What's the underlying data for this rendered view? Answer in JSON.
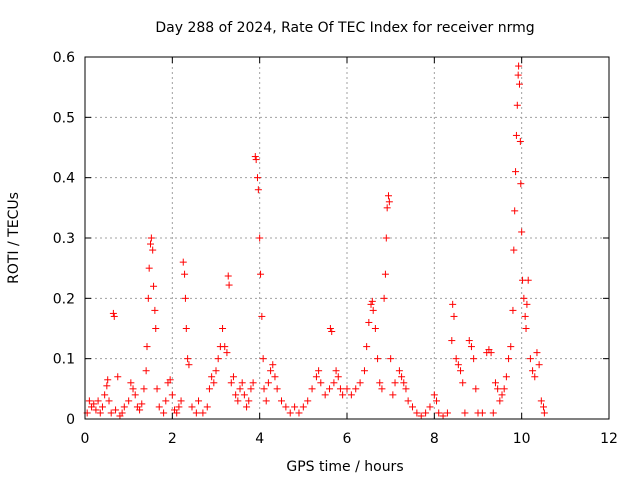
{
  "chart_data": {
    "type": "scatter",
    "title": "Day 288 of 2024, Rate Of TEC Index for receiver nrmg",
    "xlabel": "GPS time / hours",
    "ylabel": "ROTI / TECUs",
    "xlim": [
      0,
      12
    ],
    "ylim": [
      0,
      0.6
    ],
    "xticks": [
      "0",
      "2",
      "4",
      "6",
      "8",
      "10",
      "12"
    ],
    "yticks": [
      "0",
      "0.1",
      "0.2",
      "0.3",
      "0.4",
      "0.5",
      "0.6"
    ],
    "grid": true,
    "marker": "plus",
    "color": "#ff0000",
    "series": [
      {
        "name": "ROTI",
        "points": [
          [
            0.05,
            0.01
          ],
          [
            0.1,
            0.03
          ],
          [
            0.15,
            0.02
          ],
          [
            0.2,
            0.025
          ],
          [
            0.25,
            0.015
          ],
          [
            0.3,
            0.03
          ],
          [
            0.35,
            0.01
          ],
          [
            0.4,
            0.02
          ],
          [
            0.45,
            0.04
          ],
          [
            0.5,
            0.055
          ],
          [
            0.52,
            0.065
          ],
          [
            0.55,
            0.03
          ],
          [
            0.6,
            0.01
          ],
          [
            0.65,
            0.175
          ],
          [
            0.67,
            0.17
          ],
          [
            0.7,
            0.015
          ],
          [
            0.75,
            0.07
          ],
          [
            0.8,
            0.005
          ],
          [
            0.85,
            0.01
          ],
          [
            0.9,
            0.02
          ],
          [
            1.0,
            0.03
          ],
          [
            1.05,
            0.06
          ],
          [
            1.1,
            0.05
          ],
          [
            1.15,
            0.04
          ],
          [
            1.2,
            0.02
          ],
          [
            1.25,
            0.015
          ],
          [
            1.3,
            0.025
          ],
          [
            1.35,
            0.05
          ],
          [
            1.4,
            0.08
          ],
          [
            1.42,
            0.12
          ],
          [
            1.45,
            0.2
          ],
          [
            1.47,
            0.25
          ],
          [
            1.5,
            0.29
          ],
          [
            1.52,
            0.3
          ],
          [
            1.55,
            0.28
          ],
          [
            1.57,
            0.22
          ],
          [
            1.6,
            0.18
          ],
          [
            1.62,
            0.15
          ],
          [
            1.65,
            0.05
          ],
          [
            1.7,
            0.02
          ],
          [
            1.8,
            0.01
          ],
          [
            1.85,
            0.03
          ],
          [
            1.9,
            0.06
          ],
          [
            1.95,
            0.065
          ],
          [
            2.0,
            0.04
          ],
          [
            2.05,
            0.015
          ],
          [
            2.1,
            0.01
          ],
          [
            2.15,
            0.02
          ],
          [
            2.2,
            0.03
          ],
          [
            2.25,
            0.26
          ],
          [
            2.28,
            0.24
          ],
          [
            2.3,
            0.2
          ],
          [
            2.32,
            0.15
          ],
          [
            2.35,
            0.1
          ],
          [
            2.38,
            0.09
          ],
          [
            2.45,
            0.02
          ],
          [
            2.55,
            0.01
          ],
          [
            2.6,
            0.03
          ],
          [
            2.7,
            0.01
          ],
          [
            2.8,
            0.02
          ],
          [
            2.85,
            0.05
          ],
          [
            2.9,
            0.07
          ],
          [
            2.95,
            0.06
          ],
          [
            3.0,
            0.08
          ],
          [
            3.05,
            0.1
          ],
          [
            3.1,
            0.12
          ],
          [
            3.15,
            0.15
          ],
          [
            3.2,
            0.12
          ],
          [
            3.25,
            0.11
          ],
          [
            3.28,
            0.237
          ],
          [
            3.3,
            0.222
          ],
          [
            3.35,
            0.06
          ],
          [
            3.4,
            0.07
          ],
          [
            3.45,
            0.04
          ],
          [
            3.5,
            0.03
          ],
          [
            3.55,
            0.05
          ],
          [
            3.6,
            0.06
          ],
          [
            3.65,
            0.04
          ],
          [
            3.7,
            0.02
          ],
          [
            3.75,
            0.03
          ],
          [
            3.8,
            0.05
          ],
          [
            3.85,
            0.06
          ],
          [
            3.9,
            0.435
          ],
          [
            3.92,
            0.43
          ],
          [
            3.95,
            0.4
          ],
          [
            3.97,
            0.38
          ],
          [
            4.0,
            0.3
          ],
          [
            4.02,
            0.24
          ],
          [
            4.05,
            0.17
          ],
          [
            4.08,
            0.1
          ],
          [
            4.1,
            0.05
          ],
          [
            4.15,
            0.03
          ],
          [
            4.2,
            0.06
          ],
          [
            4.25,
            0.08
          ],
          [
            4.3,
            0.09
          ],
          [
            4.35,
            0.07
          ],
          [
            4.4,
            0.05
          ],
          [
            4.5,
            0.03
          ],
          [
            4.6,
            0.02
          ],
          [
            4.7,
            0.01
          ],
          [
            4.8,
            0.02
          ],
          [
            4.9,
            0.01
          ],
          [
            5.0,
            0.02
          ],
          [
            5.1,
            0.03
          ],
          [
            5.2,
            0.05
          ],
          [
            5.3,
            0.07
          ],
          [
            5.35,
            0.08
          ],
          [
            5.4,
            0.06
          ],
          [
            5.5,
            0.04
          ],
          [
            5.6,
            0.05
          ],
          [
            5.62,
            0.15
          ],
          [
            5.65,
            0.145
          ],
          [
            5.7,
            0.06
          ],
          [
            5.75,
            0.08
          ],
          [
            5.8,
            0.07
          ],
          [
            5.85,
            0.05
          ],
          [
            5.9,
            0.04
          ],
          [
            6.0,
            0.05
          ],
          [
            6.1,
            0.04
          ],
          [
            6.2,
            0.05
          ],
          [
            6.3,
            0.06
          ],
          [
            6.4,
            0.08
          ],
          [
            6.45,
            0.12
          ],
          [
            6.5,
            0.16
          ],
          [
            6.55,
            0.19
          ],
          [
            6.58,
            0.195
          ],
          [
            6.6,
            0.18
          ],
          [
            6.65,
            0.15
          ],
          [
            6.7,
            0.1
          ],
          [
            6.75,
            0.06
          ],
          [
            6.8,
            0.05
          ],
          [
            6.85,
            0.2
          ],
          [
            6.88,
            0.24
          ],
          [
            6.9,
            0.3
          ],
          [
            6.92,
            0.35
          ],
          [
            6.95,
            0.37
          ],
          [
            6.97,
            0.36
          ],
          [
            7.0,
            0.1
          ],
          [
            7.05,
            0.04
          ],
          [
            7.1,
            0.06
          ],
          [
            7.2,
            0.08
          ],
          [
            7.25,
            0.07
          ],
          [
            7.3,
            0.06
          ],
          [
            7.35,
            0.05
          ],
          [
            7.4,
            0.03
          ],
          [
            7.5,
            0.02
          ],
          [
            7.6,
            0.01
          ],
          [
            7.7,
            0.005
          ],
          [
            7.8,
            0.01
          ],
          [
            7.9,
            0.02
          ],
          [
            8.0,
            0.04
          ],
          [
            8.05,
            0.03
          ],
          [
            8.1,
            0.01
          ],
          [
            8.2,
            0.005
          ],
          [
            8.3,
            0.01
          ],
          [
            8.4,
            0.13
          ],
          [
            8.42,
            0.19
          ],
          [
            8.45,
            0.17
          ],
          [
            8.5,
            0.1
          ],
          [
            8.55,
            0.09
          ],
          [
            8.6,
            0.08
          ],
          [
            8.65,
            0.06
          ],
          [
            8.7,
            0.01
          ],
          [
            8.8,
            0.13
          ],
          [
            8.85,
            0.12
          ],
          [
            8.9,
            0.1
          ],
          [
            8.95,
            0.05
          ],
          [
            9.0,
            0.01
          ],
          [
            9.1,
            0.01
          ],
          [
            9.2,
            0.11
          ],
          [
            9.25,
            0.115
          ],
          [
            9.3,
            0.11
          ],
          [
            9.35,
            0.01
          ],
          [
            9.4,
            0.06
          ],
          [
            9.45,
            0.05
          ],
          [
            9.5,
            0.03
          ],
          [
            9.55,
            0.04
          ],
          [
            9.6,
            0.05
          ],
          [
            9.65,
            0.07
          ],
          [
            9.7,
            0.1
          ],
          [
            9.75,
            0.12
          ],
          [
            9.8,
            0.18
          ],
          [
            9.82,
            0.28
          ],
          [
            9.84,
            0.345
          ],
          [
            9.86,
            0.41
          ],
          [
            9.88,
            0.47
          ],
          [
            9.9,
            0.52
          ],
          [
            9.92,
            0.57
          ],
          [
            9.93,
            0.585
          ],
          [
            9.95,
            0.555
          ],
          [
            9.97,
            0.46
          ],
          [
            9.98,
            0.39
          ],
          [
            10.0,
            0.31
          ],
          [
            10.02,
            0.23
          ],
          [
            10.05,
            0.2
          ],
          [
            10.08,
            0.17
          ],
          [
            10.1,
            0.15
          ],
          [
            10.12,
            0.19
          ],
          [
            10.15,
            0.23
          ],
          [
            10.2,
            0.1
          ],
          [
            10.25,
            0.08
          ],
          [
            10.3,
            0.07
          ],
          [
            10.35,
            0.11
          ],
          [
            10.4,
            0.09
          ],
          [
            10.45,
            0.03
          ],
          [
            10.5,
            0.02
          ],
          [
            10.52,
            0.01
          ]
        ]
      }
    ]
  }
}
